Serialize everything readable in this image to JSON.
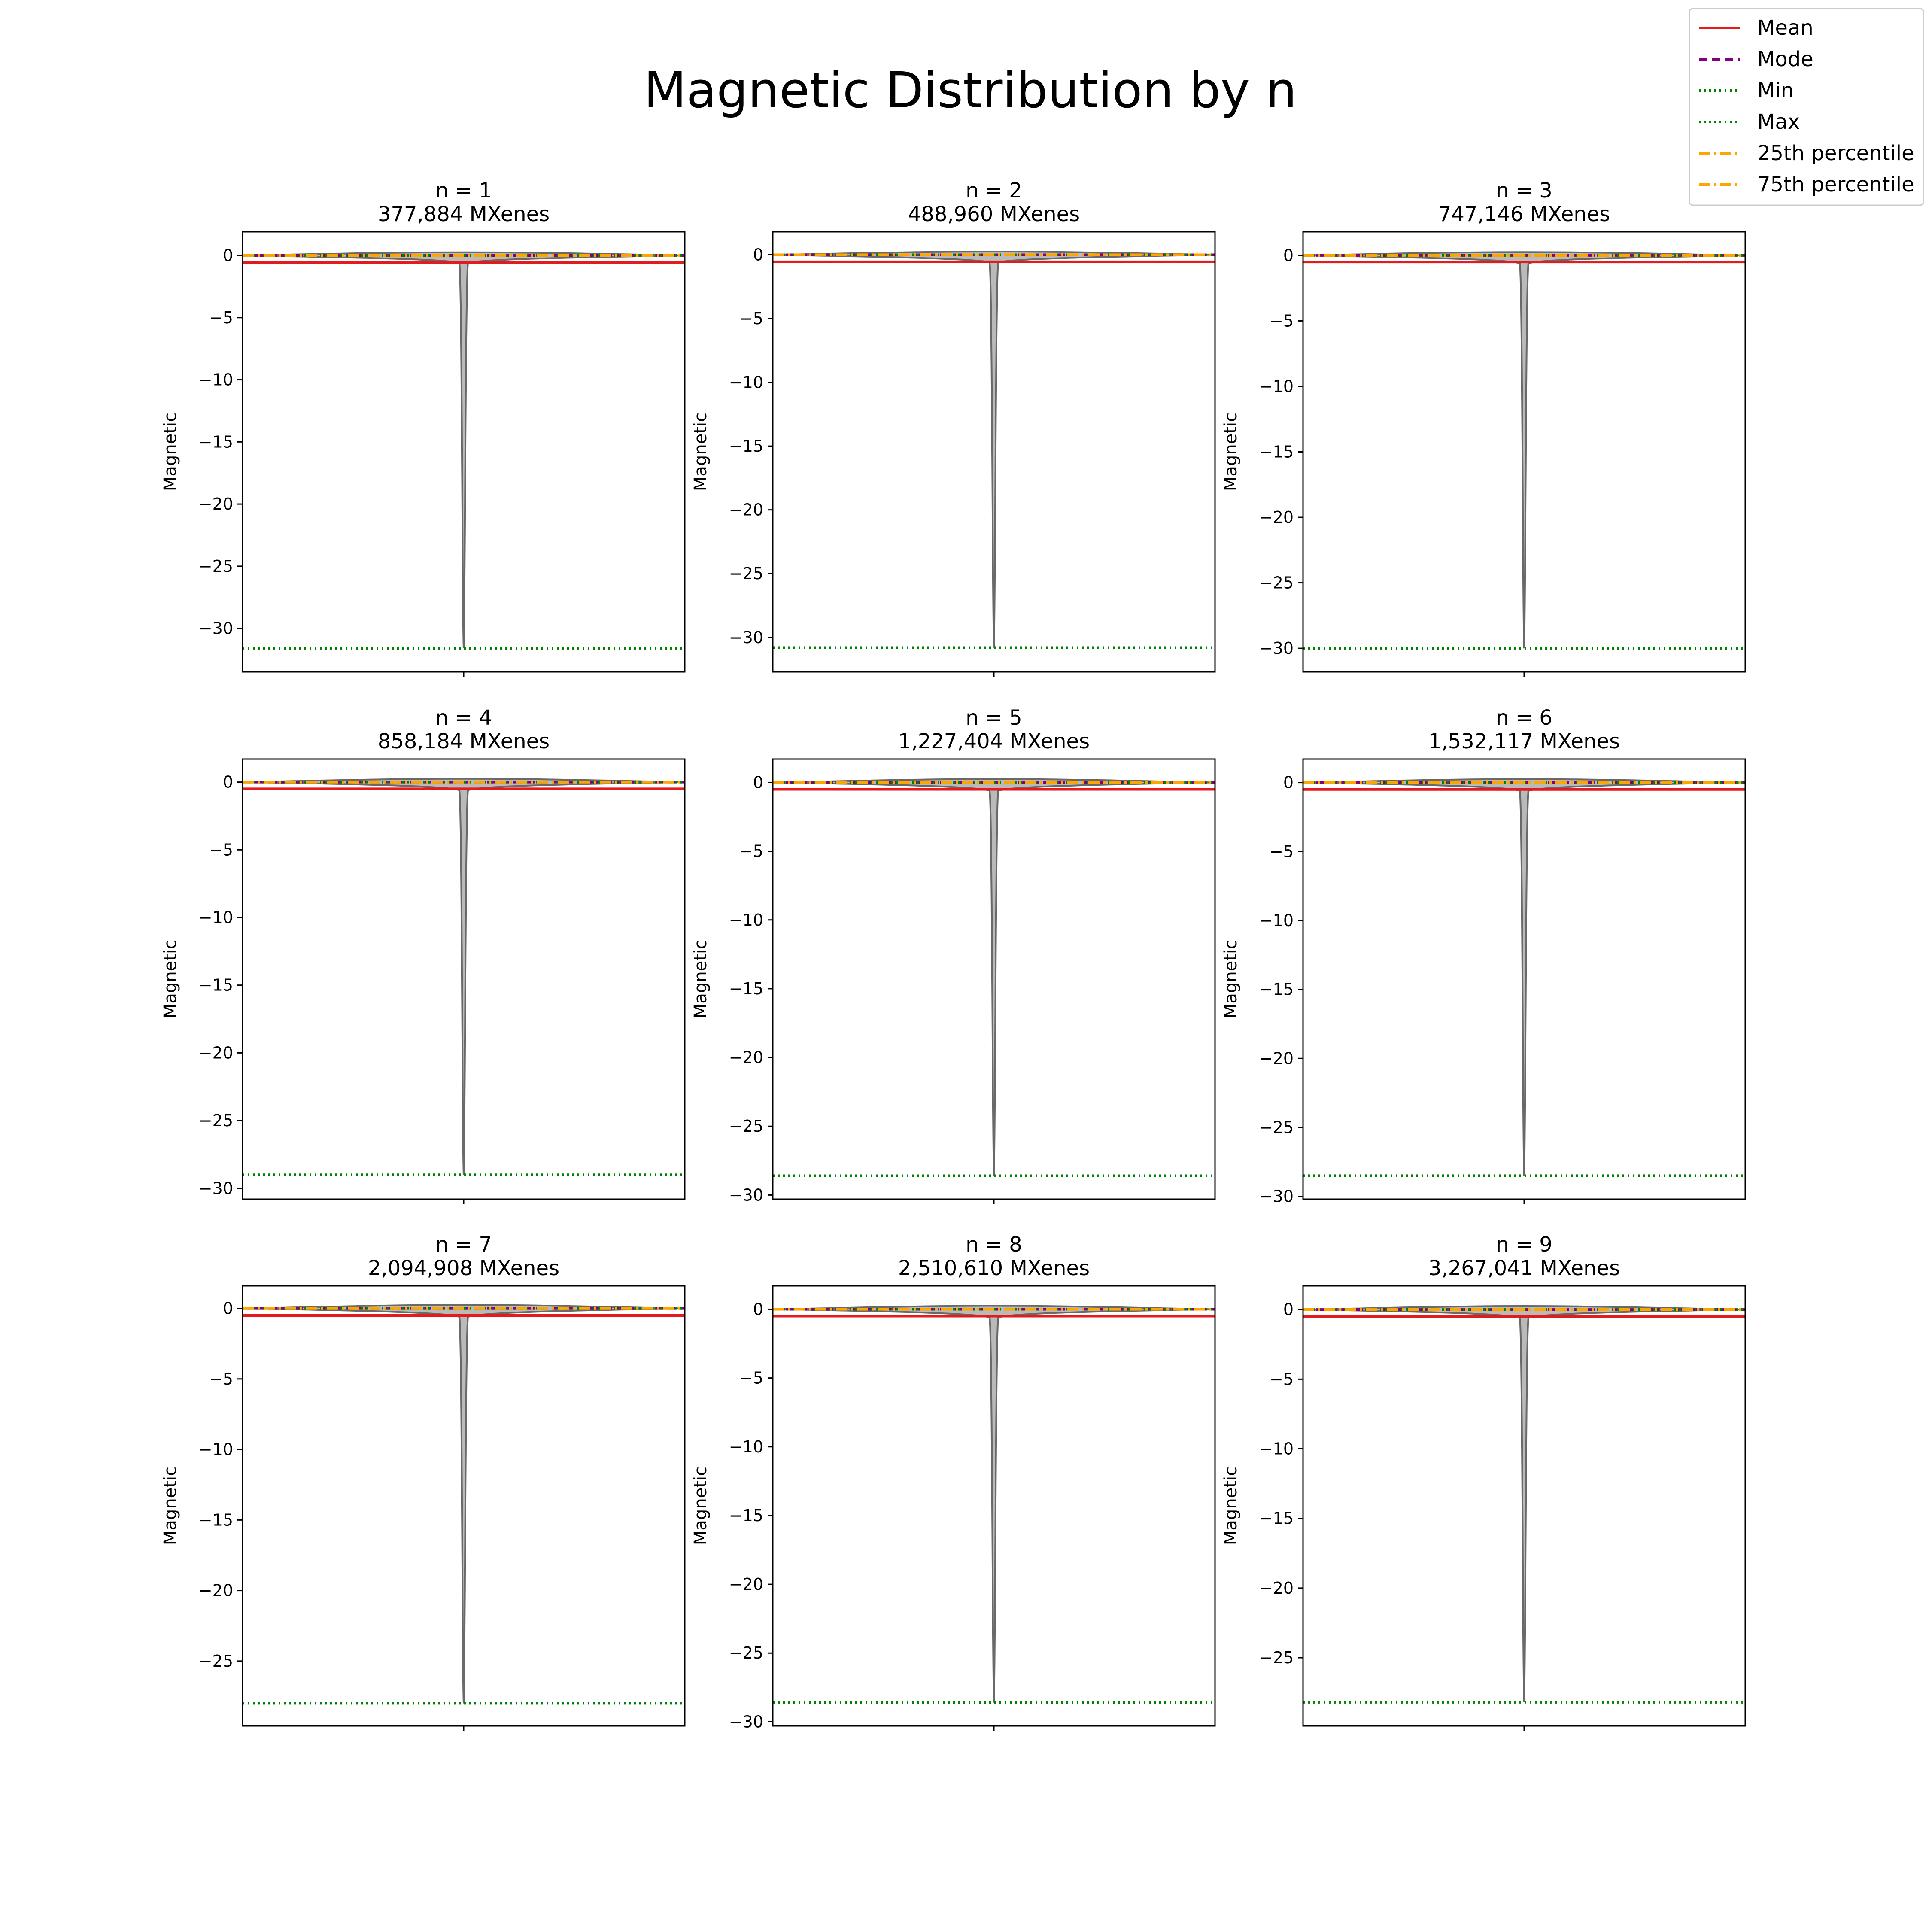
{
  "figure": {
    "title": "Magnetic Distribution by n"
  },
  "legend": {
    "placement": "top-right",
    "items": [
      {
        "label": "Mean",
        "color": "#e41a1c",
        "style": "solid"
      },
      {
        "label": "Mode",
        "color": "#800080",
        "style": "dashed"
      },
      {
        "label": "Min",
        "color": "#008000",
        "style": "dotted"
      },
      {
        "label": "Max",
        "color": "#008000",
        "style": "dotted"
      },
      {
        "label": "25th percentile",
        "color": "#ffa500",
        "style": "dashdot"
      },
      {
        "label": "75th percentile",
        "color": "#ffa500",
        "style": "dashdot"
      }
    ]
  },
  "colors": {
    "violin_fill": "#a9a9a9",
    "violin_edge": "#696969"
  },
  "chart_data": [
    {
      "type": "violin",
      "title": "n = 1",
      "subtitle": "377,884 MXenes",
      "ylabel": "Magnetic",
      "ylim": [
        -33.5,
        1.9
      ],
      "yticks": [
        0,
        -5,
        -10,
        -15,
        -20,
        -25,
        -30
      ],
      "mean": -0.55,
      "mode": 0.0,
      "min": -31.6,
      "max": 0.0,
      "p25": 0.0,
      "p75": 0.0,
      "grid": false
    },
    {
      "type": "violin",
      "title": "n = 2",
      "subtitle": "488,960 MXenes",
      "ylabel": "Magnetic",
      "ylim": [
        -32.7,
        1.8
      ],
      "yticks": [
        0,
        -5,
        -10,
        -15,
        -20,
        -25,
        -30
      ],
      "mean": -0.55,
      "mode": 0.0,
      "min": -30.8,
      "max": 0.0,
      "p25": 0.0,
      "p75": 0.0,
      "grid": false
    },
    {
      "type": "violin",
      "title": "n = 3",
      "subtitle": "747,146 MXenes",
      "ylabel": "Magnetic",
      "ylim": [
        -31.8,
        1.8
      ],
      "yticks": [
        0,
        -5,
        -10,
        -15,
        -20,
        -25,
        -30
      ],
      "mean": -0.5,
      "mode": 0.0,
      "min": -30.0,
      "max": 0.0,
      "p25": 0.0,
      "p75": 0.0,
      "grid": false
    },
    {
      "type": "violin",
      "title": "n = 4",
      "subtitle": "858,184 MXenes",
      "ylabel": "Magnetic",
      "ylim": [
        -30.8,
        1.7
      ],
      "yticks": [
        0,
        -5,
        -10,
        -15,
        -20,
        -25,
        -30
      ],
      "mean": -0.5,
      "mode": 0.0,
      "min": -29.0,
      "max": 0.0,
      "p25": 0.0,
      "p75": 0.0,
      "grid": false
    },
    {
      "type": "violin",
      "title": "n = 5",
      "subtitle": "1,227,404 MXenes",
      "ylabel": "Magnetic",
      "ylim": [
        -30.3,
        1.7
      ],
      "yticks": [
        0,
        -5,
        -10,
        -15,
        -20,
        -25,
        -30
      ],
      "mean": -0.5,
      "mode": 0.0,
      "min": -28.6,
      "max": 0.0,
      "p25": 0.0,
      "p75": 0.0,
      "grid": false
    },
    {
      "type": "violin",
      "title": "n = 6",
      "subtitle": "1,532,117 MXenes",
      "ylabel": "Magnetic",
      "ylim": [
        -30.2,
        1.7
      ],
      "yticks": [
        0,
        -5,
        -10,
        -15,
        -20,
        -25,
        -30
      ],
      "mean": -0.5,
      "mode": 0.0,
      "min": -28.5,
      "max": 0.0,
      "p25": 0.0,
      "p75": 0.0,
      "grid": false
    },
    {
      "type": "violin",
      "title": "n = 7",
      "subtitle": "2,094,908 MXenes",
      "ylabel": "Magnetic",
      "ylim": [
        -29.6,
        1.6
      ],
      "yticks": [
        0,
        -5,
        -10,
        -15,
        -20,
        -25
      ],
      "mean": -0.5,
      "mode": 0.0,
      "min": -28.0,
      "max": 0.0,
      "p25": 0.0,
      "p75": 0.0,
      "grid": false
    },
    {
      "type": "violin",
      "title": "n = 8",
      "subtitle": "2,510,610 MXenes",
      "ylabel": "Magnetic",
      "ylim": [
        -30.3,
        1.7
      ],
      "yticks": [
        0,
        -5,
        -10,
        -15,
        -20,
        -25,
        -30
      ],
      "mean": -0.5,
      "mode": 0.0,
      "min": -28.6,
      "max": 0.0,
      "p25": 0.0,
      "p75": 0.0,
      "grid": false
    },
    {
      "type": "violin",
      "title": "n = 9",
      "subtitle": "3,267,041 MXenes",
      "ylabel": "Magnetic",
      "ylim": [
        -29.9,
        1.7
      ],
      "yticks": [
        0,
        -5,
        -10,
        -15,
        -20,
        -25
      ],
      "mean": -0.5,
      "mode": 0.0,
      "min": -28.2,
      "max": 0.0,
      "p25": 0.0,
      "p75": 0.0,
      "grid": false
    }
  ]
}
